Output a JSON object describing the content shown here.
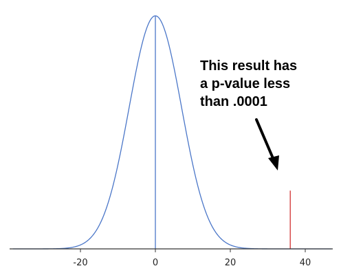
{
  "chart_data": {
    "type": "line",
    "title": "",
    "xlabel": "",
    "ylabel": "",
    "xlim": [
      -38,
      47
    ],
    "x_ticks": [
      -20,
      0,
      20,
      40
    ],
    "x_tick_labels": [
      "-20",
      "0",
      "20",
      "40"
    ],
    "grid": false,
    "series": [
      {
        "kind": "normal-density-curve",
        "mean": 0,
        "sd": 7,
        "color": "#4a76c8"
      }
    ],
    "markers": [
      {
        "x": 0,
        "kind": "mean-line",
        "color": "#4a76c8"
      },
      {
        "x": 36,
        "kind": "observed-result",
        "relative_height": 0.25,
        "color": "#d22f2f"
      }
    ],
    "annotations": [
      {
        "text_lines": [
          "This result has",
          "a p-value less",
          "than .0001"
        ],
        "arrow_points_to_x": 36
      }
    ]
  }
}
